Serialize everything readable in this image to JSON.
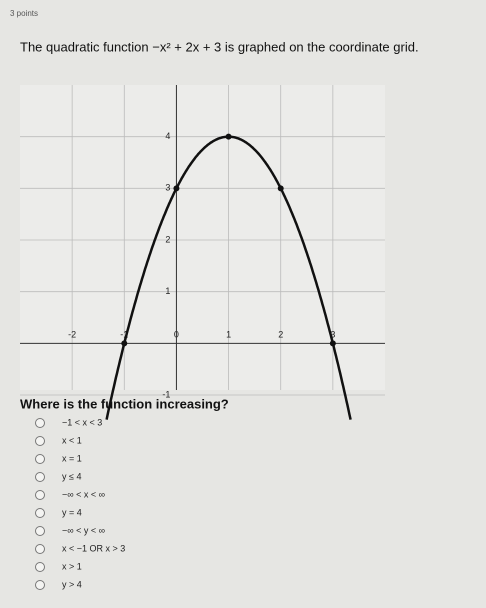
{
  "header": {
    "points": "3 points"
  },
  "question": "The quadratic function −x² + 2x + 3 is graphed on the coordinate grid.",
  "graph": {
    "xlim": [
      -3,
      4
    ],
    "ylim": [
      -1,
      5
    ],
    "xticks": [
      -2,
      -1,
      0,
      1,
      2,
      3
    ],
    "yticks": [
      -1,
      1,
      2,
      3,
      4
    ],
    "points": {
      "x": [
        -1,
        0,
        1,
        2,
        3
      ],
      "y": [
        0,
        3,
        4,
        3,
        0
      ]
    }
  },
  "prompt": "Where is the function increasing?",
  "options": [
    "−1 < x < 3",
    "x < 1",
    "x = 1",
    "y ≤ 4",
    "−∞ < x < ∞",
    "y = 4",
    "−∞ < y < ∞",
    "x < −1 OR x > 3",
    "x > 1",
    "y > 4"
  ]
}
